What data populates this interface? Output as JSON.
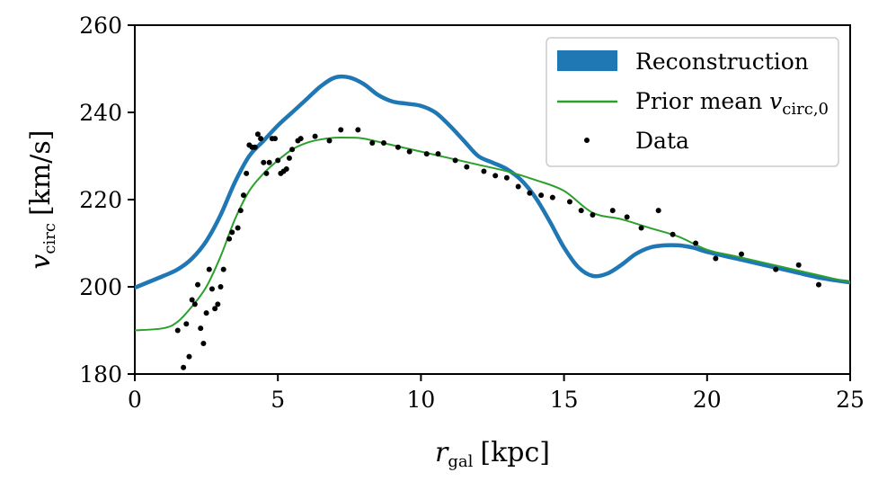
{
  "chart_data": {
    "type": "line",
    "title": "",
    "xlabel_main": "r",
    "xlabel_sub": "gal",
    "xlabel_unit": "[kpc]",
    "ylabel_main": "v",
    "ylabel_sub": "circ",
    "ylabel_unit": "[km/s]",
    "xlim": [
      0,
      25
    ],
    "ylim": [
      180,
      260
    ],
    "x_ticks": [
      0,
      5,
      10,
      15,
      20,
      25
    ],
    "y_ticks": [
      180,
      200,
      220,
      240,
      260
    ],
    "grid": false,
    "legend_position": "top-right",
    "legend": {
      "reconstruction": "Reconstruction",
      "prior_main": "Prior mean ",
      "prior_var": "v",
      "prior_sub": "circ,0",
      "data": "Data"
    },
    "series": [
      {
        "name": "Reconstruction",
        "kind": "line",
        "color": "#1f77b4",
        "x": [
          0,
          1,
          1.5,
          2,
          2.5,
          3,
          3.5,
          4,
          4.5,
          5,
          5.5,
          6,
          6.5,
          7,
          7.5,
          8,
          8.5,
          9,
          9.5,
          10,
          10.5,
          11,
          11.5,
          12,
          12.5,
          13,
          13.5,
          14,
          14.5,
          15,
          15.5,
          16,
          16.5,
          17,
          17.5,
          18,
          18.5,
          19,
          19.5,
          20,
          21,
          22,
          23,
          24,
          25
        ],
        "y": [
          199.8,
          202.5,
          204,
          206.5,
          210.5,
          216.5,
          224,
          230,
          233.5,
          237,
          240,
          243,
          246,
          248,
          248,
          246.5,
          244,
          242.5,
          242,
          241.5,
          240,
          237,
          233.5,
          230,
          228.5,
          227,
          224.5,
          220.5,
          215,
          209,
          204.5,
          202.5,
          203,
          205,
          207.5,
          209,
          209.5,
          209.5,
          209,
          208,
          206.5,
          205,
          203.5,
          202,
          201
        ]
      },
      {
        "name": "Prior mean v_circ,0",
        "kind": "line",
        "color": "#2ca02c",
        "x": [
          0,
          1,
          1.5,
          2,
          2.5,
          3,
          3.5,
          4,
          4.5,
          5,
          5.5,
          6,
          6.5,
          7,
          7.5,
          8,
          9,
          10,
          11,
          12,
          13,
          14,
          15,
          16,
          17,
          18,
          19,
          20,
          21,
          22,
          23,
          24,
          25
        ],
        "y": [
          190,
          190.5,
          192,
          195.5,
          200,
          207,
          215.5,
          222,
          226,
          229,
          231.5,
          233,
          233.8,
          234.2,
          234.2,
          234,
          232.5,
          231,
          229.5,
          228,
          226.5,
          224.5,
          222,
          217,
          215.5,
          213.5,
          211.5,
          208.5,
          207,
          205.5,
          204,
          202.5,
          201
        ]
      },
      {
        "name": "Data",
        "kind": "scatter",
        "color": "#000000",
        "x": [
          1.5,
          1.7,
          1.8,
          1.9,
          2.0,
          2.1,
          2.2,
          2.3,
          2.4,
          2.5,
          2.6,
          2.7,
          2.8,
          2.9,
          3.0,
          3.1,
          3.3,
          3.4,
          3.6,
          3.7,
          3.8,
          3.9,
          4.0,
          4.1,
          4.2,
          4.3,
          4.4,
          4.5,
          4.6,
          4.7,
          4.8,
          4.9,
          5.0,
          5.1,
          5.2,
          5.3,
          5.4,
          5.5,
          5.7,
          5.8,
          6.3,
          6.8,
          7.2,
          7.8,
          8.3,
          8.7,
          9.2,
          9.6,
          10.2,
          10.6,
          11.2,
          11.6,
          12.2,
          12.6,
          13.0,
          13.4,
          13.8,
          14.2,
          14.6,
          15.2,
          15.6,
          16.0,
          16.7,
          17.2,
          17.7,
          18.3,
          18.8,
          19.6,
          20.3,
          21.2,
          22.4,
          23.2,
          23.9
        ],
        "y": [
          190,
          181.5,
          191.5,
          184,
          197,
          196,
          200.5,
          190.5,
          187,
          194,
          204,
          199.5,
          195,
          196,
          200,
          204,
          211,
          212.5,
          213.5,
          217.5,
          221,
          226,
          232.5,
          232,
          232,
          235,
          234,
          228.5,
          226,
          228.5,
          234,
          234,
          229,
          226,
          226.5,
          227,
          229.5,
          231.5,
          233.5,
          234,
          234.5,
          233.5,
          236,
          236,
          233,
          233,
          232,
          231,
          230.5,
          230.5,
          229,
          227.5,
          226.5,
          225.5,
          225,
          223,
          221.5,
          221,
          220.5,
          219.5,
          217.5,
          216.5,
          217.5,
          216,
          213.5,
          217.5,
          212,
          210,
          206.5,
          207.5,
          204,
          205,
          200.5
        ]
      }
    ]
  }
}
